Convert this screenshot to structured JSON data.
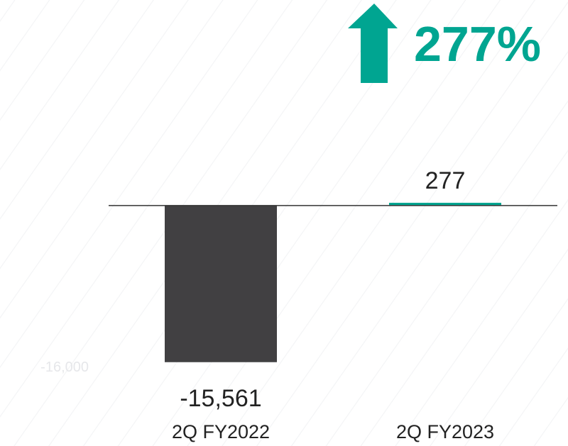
{
  "chart_data": {
    "type": "bar",
    "categories": [
      "2Q FY2022",
      "2Q FY2023"
    ],
    "values": [
      -15561,
      277
    ],
    "value_labels": [
      "-15,561",
      "277"
    ],
    "colors": [
      "#414042",
      "#00a591"
    ],
    "ylim": [
      -16000,
      10000
    ],
    "yticks": [
      {
        "value": -16000,
        "label": "-16,000"
      }
    ],
    "annotation": "277%"
  }
}
